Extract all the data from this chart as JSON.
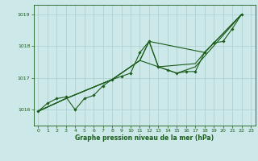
{
  "title": "Graphe pression niveau de la mer (hPa)",
  "bg_color": "#cce8e8",
  "grid_color": "#aacece",
  "line_color": "#1a5c1a",
  "marker_color": "#1a5c1a",
  "ylim": [
    1015.5,
    1019.3
  ],
  "xlim": [
    -0.5,
    23.5
  ],
  "yticks": [
    1016,
    1017,
    1018,
    1019
  ],
  "xticks": [
    0,
    1,
    2,
    3,
    4,
    5,
    6,
    7,
    8,
    9,
    10,
    11,
    12,
    13,
    14,
    15,
    16,
    17,
    18,
    19,
    20,
    21,
    22,
    23
  ],
  "series1": [
    [
      0,
      1015.95
    ],
    [
      1,
      1016.2
    ],
    [
      2,
      1016.35
    ],
    [
      3,
      1016.4
    ],
    [
      4,
      1016.0
    ],
    [
      5,
      1016.35
    ],
    [
      6,
      1016.45
    ],
    [
      7,
      1016.75
    ],
    [
      8,
      1016.95
    ],
    [
      9,
      1017.05
    ],
    [
      10,
      1017.15
    ],
    [
      11,
      1017.8
    ],
    [
      12,
      1018.15
    ],
    [
      13,
      1017.35
    ],
    [
      14,
      1017.25
    ],
    [
      15,
      1017.15
    ],
    [
      16,
      1017.2
    ],
    [
      17,
      1017.2
    ],
    [
      18,
      1017.8
    ],
    [
      19,
      1018.1
    ],
    [
      20,
      1018.15
    ],
    [
      21,
      1018.55
    ],
    [
      22,
      1019.0
    ]
  ],
  "series2": [
    [
      0,
      1015.95
    ],
    [
      3,
      1016.35
    ],
    [
      8,
      1016.95
    ],
    [
      11,
      1017.55
    ],
    [
      13,
      1017.35
    ],
    [
      14,
      1017.25
    ],
    [
      15,
      1017.15
    ],
    [
      17,
      1017.35
    ],
    [
      22,
      1019.0
    ]
  ],
  "series3": [
    [
      0,
      1015.95
    ],
    [
      3,
      1016.35
    ],
    [
      8,
      1016.95
    ],
    [
      11,
      1017.55
    ],
    [
      12,
      1018.15
    ],
    [
      13,
      1017.35
    ],
    [
      17,
      1017.45
    ],
    [
      18,
      1017.8
    ],
    [
      22,
      1019.0
    ]
  ],
  "series4": [
    [
      0,
      1015.95
    ],
    [
      3,
      1016.35
    ],
    [
      8,
      1016.95
    ],
    [
      11,
      1017.55
    ],
    [
      12,
      1018.15
    ],
    [
      18,
      1017.8
    ],
    [
      22,
      1019.0
    ]
  ]
}
